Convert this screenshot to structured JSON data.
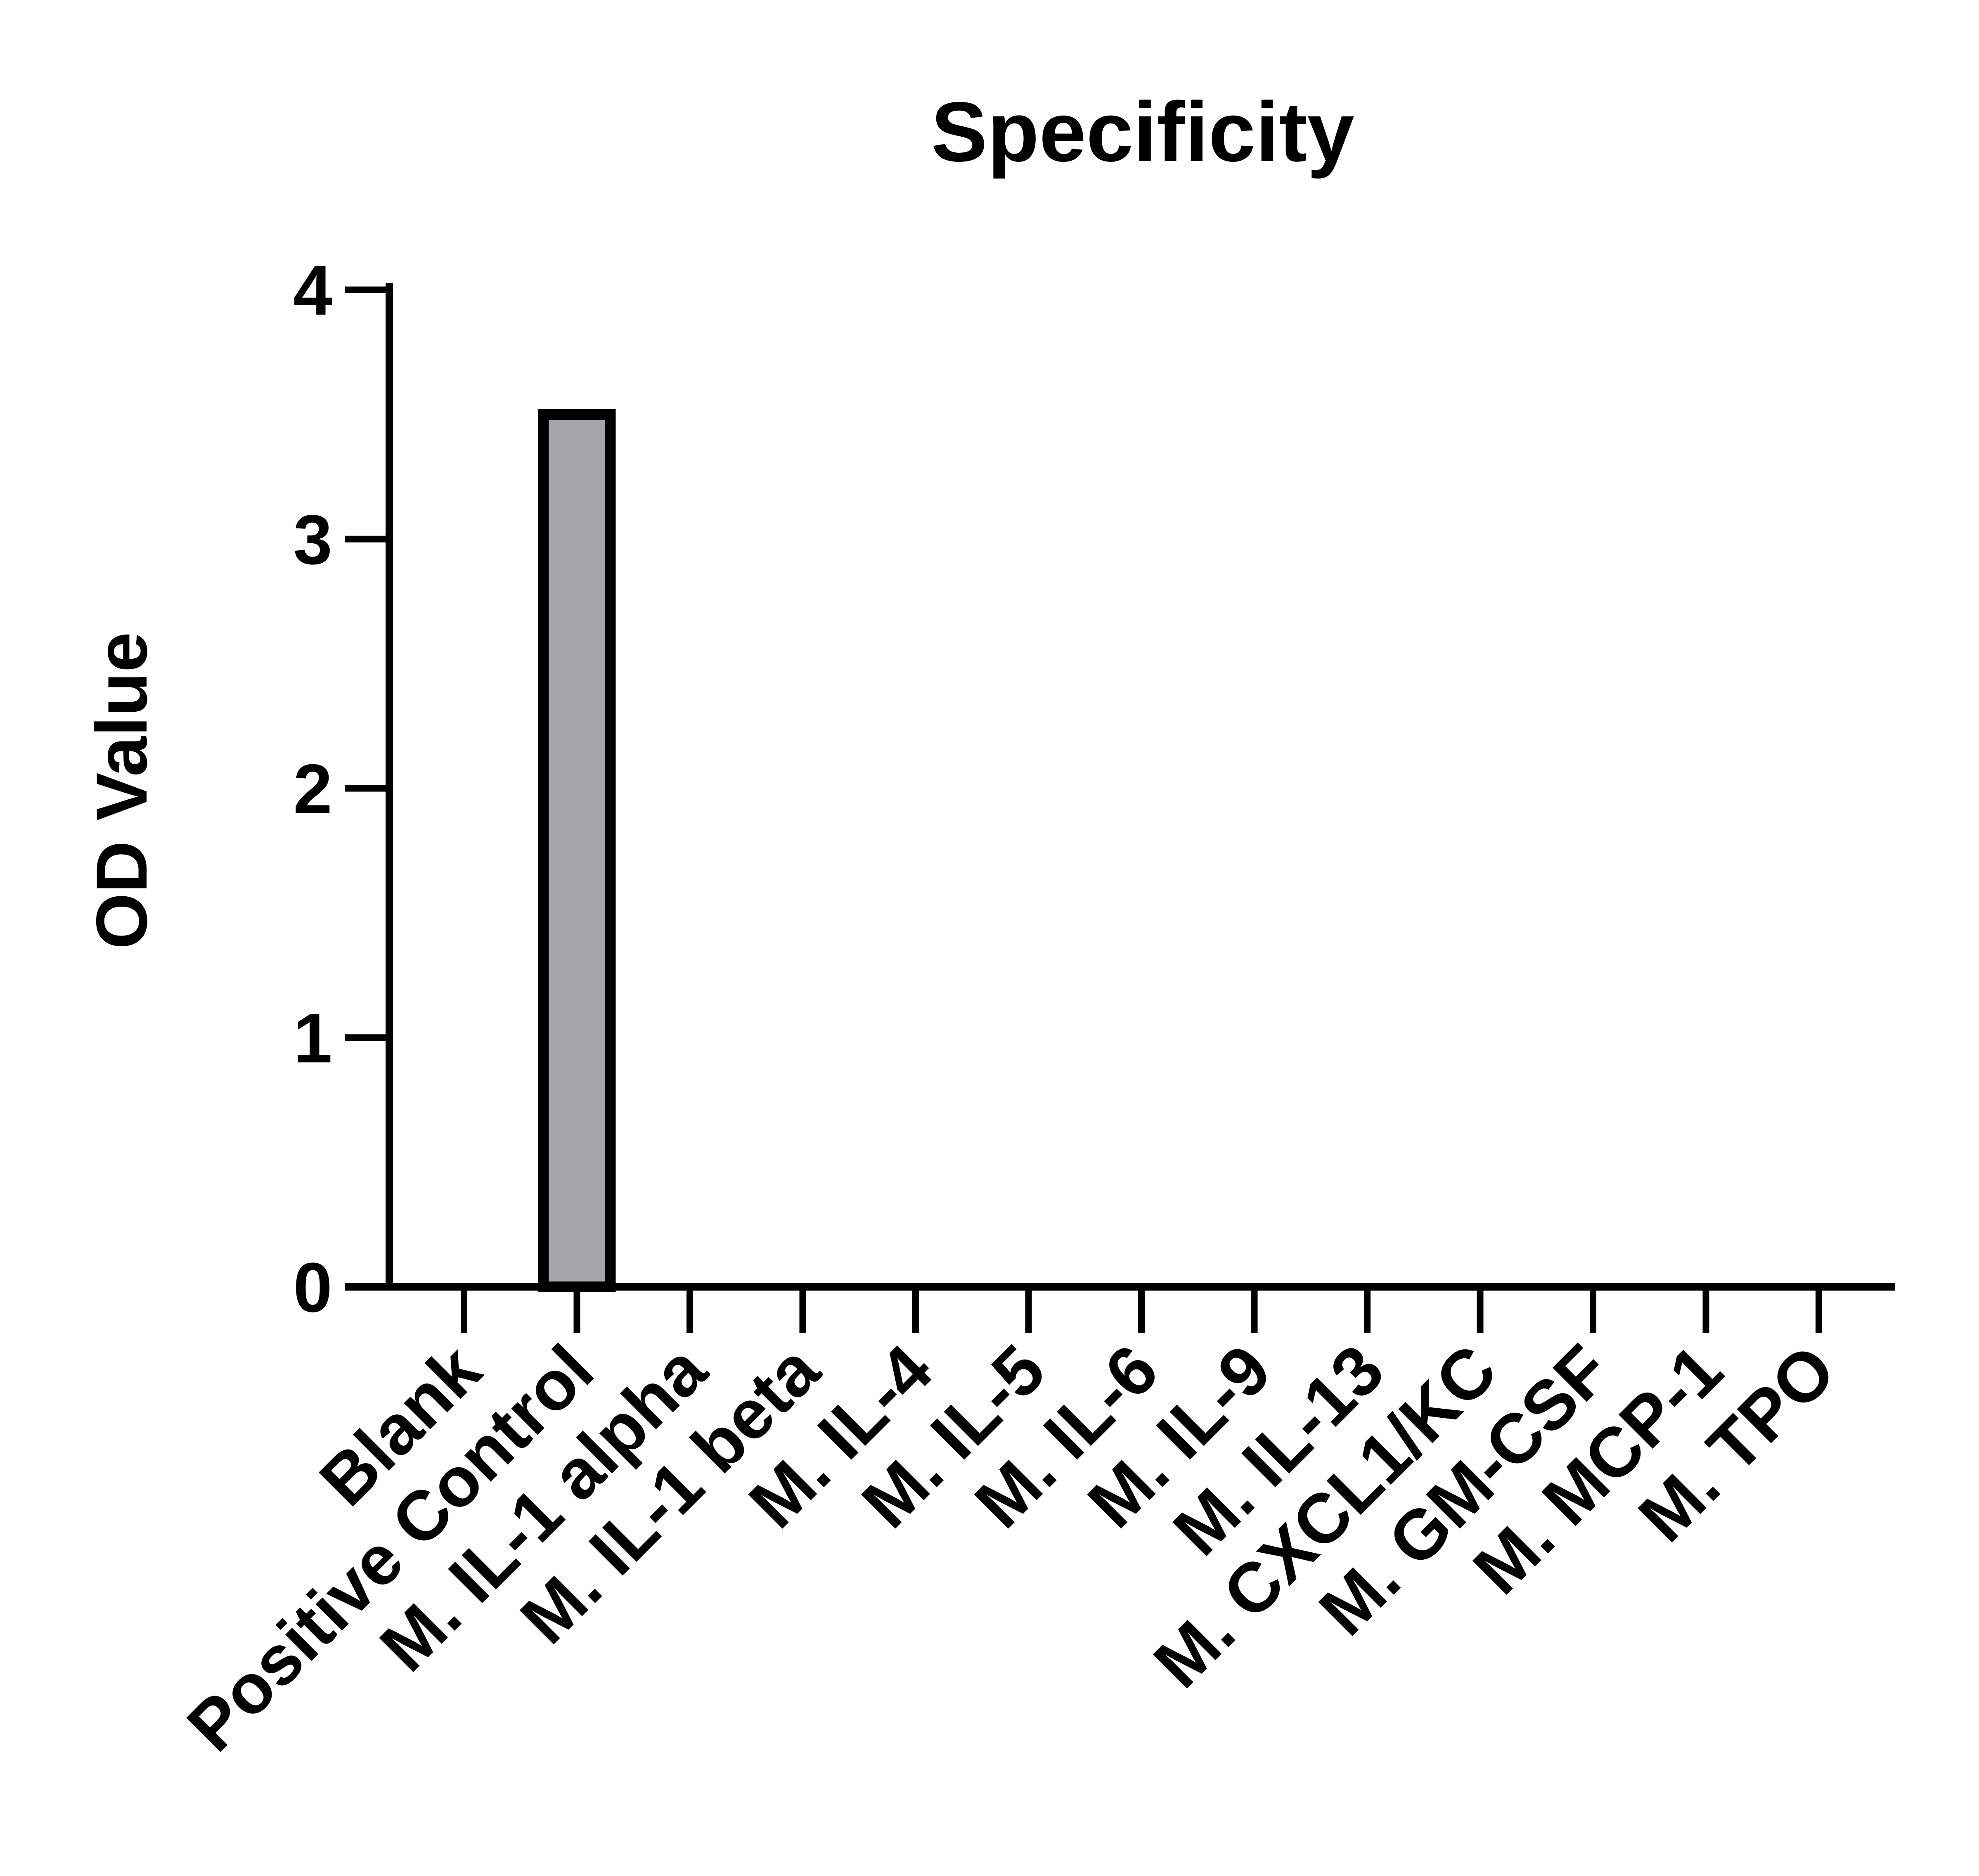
{
  "chart_data": {
    "type": "bar",
    "title": "Specificity",
    "xlabel": "",
    "ylabel": "OD Value",
    "categories": [
      "Blank",
      "Positive Control",
      "M. IL-1 alpha",
      "M. IL-1 beta",
      "M. IL-4",
      "M. IL-5",
      "M. IL-6",
      "M. IL-9",
      "M. IL-13",
      "M. CXCL1/KC",
      "M. GM-CSF",
      "M. MCP-1",
      "M. TPO"
    ],
    "values": [
      0,
      3.5,
      0,
      0,
      0,
      0,
      0,
      0,
      0,
      0,
      0,
      0,
      0
    ],
    "ylim": [
      0,
      4
    ],
    "yticks": [
      "0",
      "1",
      "2",
      "3",
      "4"
    ],
    "grid": false,
    "legend": "none",
    "colors": {
      "bar_fill": "#a6a5aa",
      "bar_edge": "#000000",
      "axis": "#000000"
    }
  }
}
